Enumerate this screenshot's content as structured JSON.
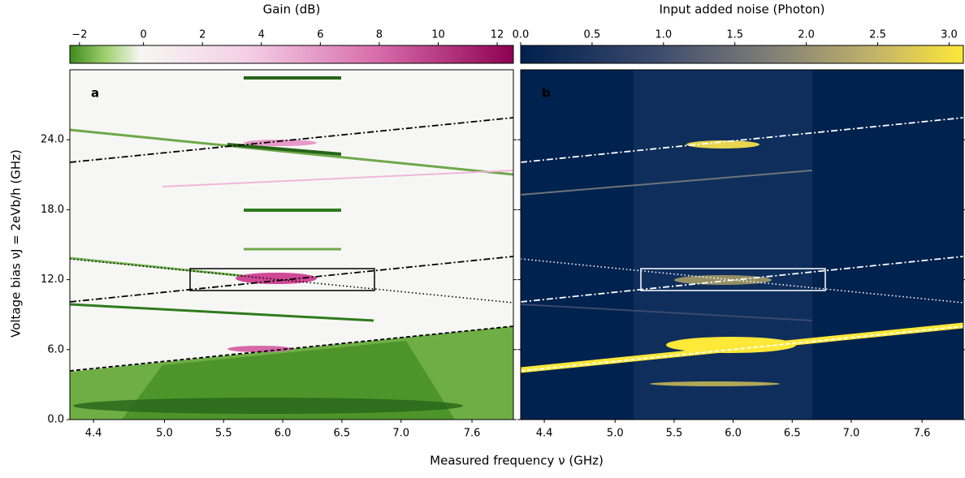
{
  "chart_data": [
    {
      "type": "heatmap",
      "panel": "a",
      "colorbar_label": "Gain (dB)",
      "colormap": "PiYG",
      "norm": "two-slope",
      "center": 0,
      "clim": [
        -2.3,
        12.55
      ],
      "cticks": [
        {
          "value": -2,
          "label": "−2"
        },
        0,
        2,
        4,
        6,
        8,
        10,
        12
      ],
      "xlim": [
        4.2,
        7.95
      ],
      "xticks": [
        4.4,
        {
          "value": 5,
          "label": "5.0"
        },
        5.5,
        {
          "value": 6,
          "label": "6.0"
        },
        6.5,
        {
          "value": 7,
          "label": "7.0"
        },
        7.6
      ],
      "ylim": [
        0,
        30
      ],
      "yticks": [
        {
          "value": 0,
          "label": "0.0"
        },
        {
          "value": 6,
          "label": "6.0"
        },
        {
          "value": 12,
          "label": "12.0"
        },
        {
          "value": 18,
          "label": "18.0"
        },
        {
          "value": 24,
          "label": "24.0"
        }
      ],
      "overlay_color": "#000000"
    },
    {
      "type": "heatmap",
      "panel": "b",
      "colorbar_label": "Input added noise (Photon)",
      "colormap": "cividis",
      "norm": "linear",
      "clim": [
        0,
        3.1
      ],
      "cticks": [
        {
          "value": 0,
          "label": "0.0"
        },
        0.5,
        {
          "value": 1,
          "label": "1.0"
        },
        1.5,
        {
          "value": 2,
          "label": "2.0"
        },
        2.5,
        {
          "value": 3,
          "label": "3.0"
        }
      ],
      "xlim": [
        4.2,
        7.95
      ],
      "xticks": [
        4.4,
        {
          "value": 5,
          "label": "5.0"
        },
        5.5,
        {
          "value": 6,
          "label": "6.0"
        },
        6.5,
        {
          "value": 7,
          "label": "7.0"
        },
        7.6
      ],
      "ylim": [
        0,
        30
      ],
      "yticks": [
        {
          "value": 0,
          "label": "0.0"
        },
        {
          "value": 6,
          "label": "6.0"
        },
        {
          "value": 12,
          "label": "12.0"
        },
        {
          "value": 18,
          "label": "18.0"
        },
        {
          "value": 24,
          "label": "24.0"
        }
      ],
      "overlay_color": "#ffffff"
    }
  ],
  "xlabel": "Measured frequency ν (GHz)",
  "ylabel": "Voltage bias νJ = 2eVb/h (GHz)"
}
